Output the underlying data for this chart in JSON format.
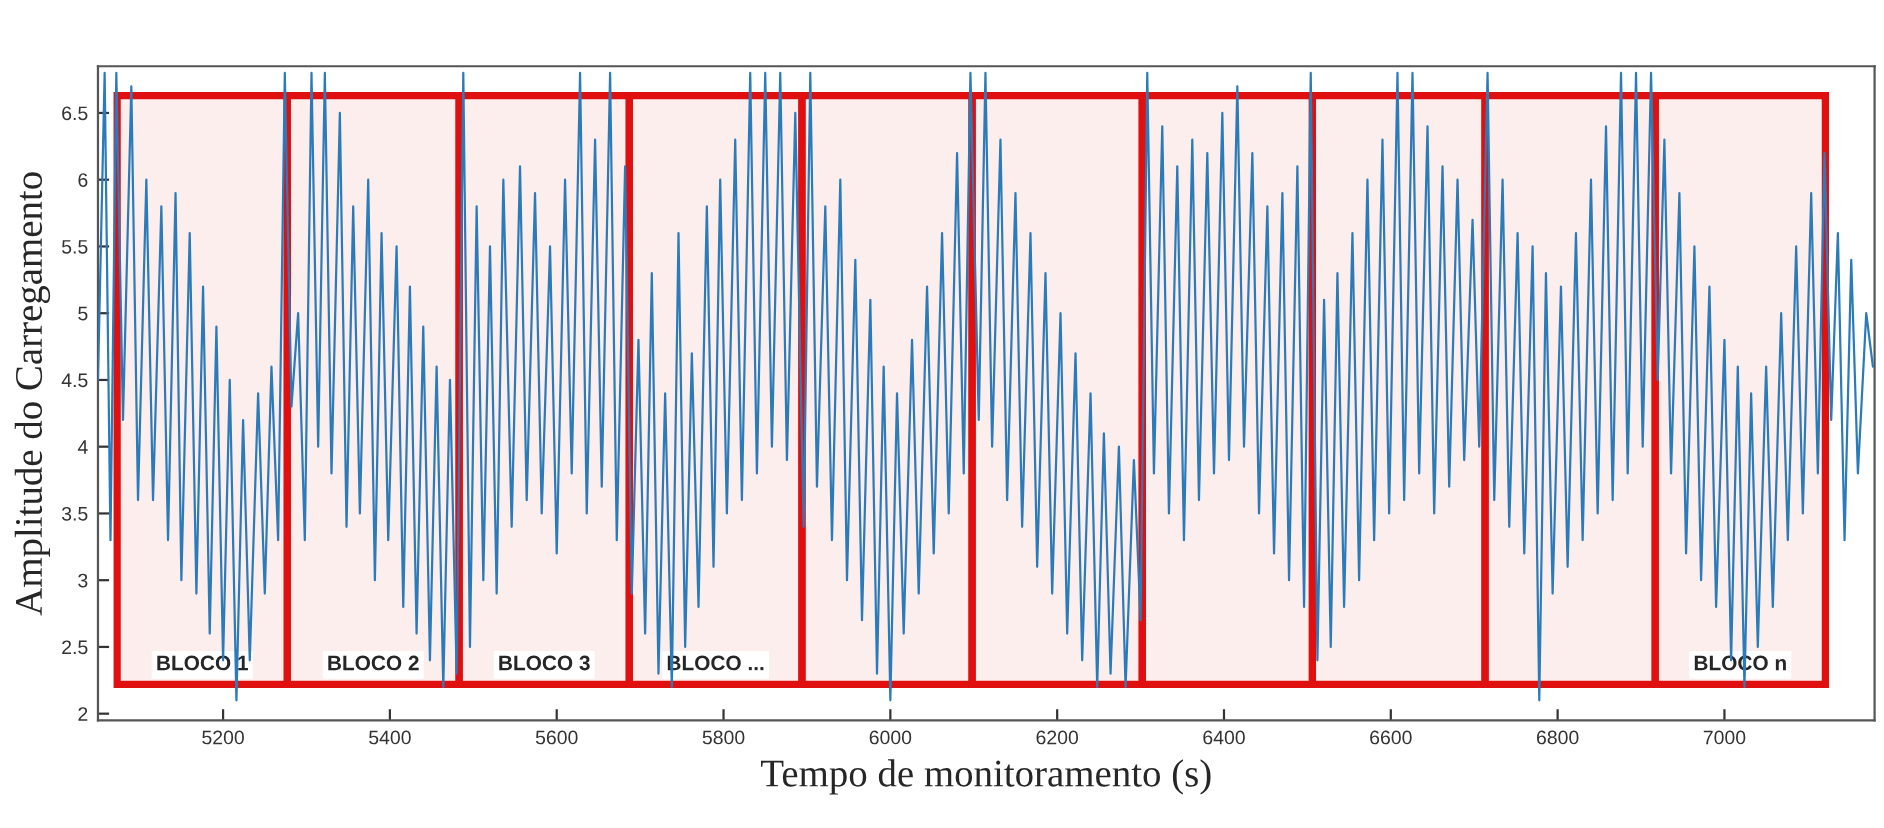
{
  "chart_data": {
    "type": "line",
    "xlabel": "Tempo de monitoramento (s)",
    "ylabel": "Amplitude do Carregamento",
    "x": [
      5050,
      5058,
      5065,
      5072,
      5080,
      5090,
      5098,
      5108,
      5116,
      5126,
      5134,
      5143,
      5150,
      5160,
      5168,
      5176,
      5184,
      5192,
      5200,
      5208,
      5216,
      5224,
      5232,
      5242,
      5250,
      5258,
      5266,
      5274,
      5282,
      5290,
      5298,
      5306,
      5314,
      5322,
      5330,
      5340,
      5348,
      5356,
      5364,
      5374,
      5382,
      5390,
      5398,
      5408,
      5416,
      5424,
      5432,
      5440,
      5448,
      5456,
      5464,
      5472,
      5480,
      5488,
      5496,
      5504,
      5512,
      5520,
      5528,
      5536,
      5546,
      5556,
      5564,
      5574,
      5582,
      5592,
      5600,
      5610,
      5618,
      5628,
      5636,
      5646,
      5654,
      5664,
      5672,
      5682,
      5690,
      5698,
      5706,
      5714,
      5722,
      5730,
      5738,
      5746,
      5754,
      5762,
      5770,
      5780,
      5788,
      5796,
      5804,
      5814,
      5822,
      5832,
      5840,
      5850,
      5858,
      5868,
      5876,
      5886,
      5896,
      5904,
      5912,
      5922,
      5930,
      5940,
      5948,
      5958,
      5966,
      5976,
      5984,
      5992,
      6000,
      6008,
      6016,
      6026,
      6034,
      6044,
      6052,
      6062,
      6070,
      6080,
      6088,
      6096,
      6106,
      6114,
      6122,
      6132,
      6140,
      6150,
      6158,
      6168,
      6176,
      6186,
      6194,
      6204,
      6212,
      6222,
      6230,
      6240,
      6248,
      6256,
      6264,
      6274,
      6282,
      6292,
      6300,
      6308,
      6316,
      6326,
      6334,
      6344,
      6352,
      6362,
      6370,
      6380,
      6388,
      6398,
      6406,
      6416,
      6424,
      6434,
      6442,
      6452,
      6460,
      6470,
      6478,
      6488,
      6496,
      6504,
      6512,
      6520,
      6528,
      6536,
      6544,
      6554,
      6562,
      6572,
      6580,
      6590,
      6598,
      6608,
      6616,
      6626,
      6634,
      6644,
      6652,
      6662,
      6670,
      6680,
      6688,
      6698,
      6706,
      6716,
      6724,
      6734,
      6742,
      6752,
      6760,
      6770,
      6778,
      6786,
      6794,
      6804,
      6812,
      6822,
      6830,
      6840,
      6848,
      6858,
      6866,
      6876,
      6884,
      6894,
      6902,
      6912,
      6920,
      6928,
      6936,
      6946,
      6954,
      6964,
      6972,
      6982,
      6990,
      7000,
      7008,
      7016,
      7024,
      7032,
      7040,
      7050,
      7058,
      7068,
      7076,
      7086,
      7094,
      7104,
      7112,
      7120,
      7128,
      7136,
      7144,
      7152,
      7160,
      7170,
      7178
    ],
    "series": [
      {
        "color": "#2b7bba",
        "values": [
          4.5,
          6.8,
          3.3,
          6.8,
          4.2,
          6.7,
          3.6,
          6.0,
          3.6,
          5.8,
          3.3,
          5.9,
          3.0,
          5.6,
          2.9,
          5.2,
          2.6,
          4.9,
          2.4,
          4.5,
          2.1,
          4.2,
          2.4,
          4.4,
          2.9,
          4.6,
          3.3,
          6.8,
          4.3,
          5.0,
          3.3,
          6.8,
          4.0,
          6.8,
          3.8,
          6.5,
          3.4,
          5.8,
          3.5,
          6.0,
          3.0,
          5.6,
          3.3,
          5.5,
          2.8,
          5.2,
          2.6,
          4.9,
          2.4,
          4.6,
          2.2,
          4.5,
          2.3,
          6.8,
          2.5,
          5.8,
          3.0,
          5.5,
          2.9,
          6.0,
          3.4,
          6.1,
          3.6,
          5.9,
          3.5,
          5.5,
          3.2,
          6.0,
          3.8,
          6.8,
          3.5,
          6.3,
          3.7,
          6.8,
          3.3,
          6.1,
          2.9,
          4.8,
          2.6,
          5.3,
          2.3,
          4.4,
          2.2,
          5.6,
          2.5,
          4.7,
          2.8,
          5.8,
          3.1,
          6.0,
          3.5,
          6.3,
          3.6,
          6.8,
          3.8,
          6.8,
          4.0,
          6.8,
          3.9,
          6.5,
          3.4,
          6.8,
          3.7,
          5.8,
          3.3,
          6.0,
          3.0,
          5.4,
          2.7,
          5.1,
          2.3,
          4.6,
          2.1,
          4.4,
          2.6,
          4.8,
          2.9,
          5.2,
          3.2,
          5.6,
          3.5,
          6.2,
          3.8,
          6.8,
          4.2,
          6.8,
          4.0,
          6.3,
          3.6,
          5.9,
          3.4,
          5.6,
          3.1,
          5.3,
          2.9,
          5.0,
          2.6,
          4.7,
          2.4,
          4.4,
          2.2,
          4.1,
          2.3,
          4.0,
          2.2,
          3.9,
          2.7,
          6.8,
          3.8,
          6.4,
          3.5,
          6.1,
          3.3,
          6.3,
          3.6,
          6.2,
          3.8,
          6.5,
          3.9,
          6.7,
          4.0,
          6.2,
          3.5,
          5.8,
          3.2,
          5.9,
          3.0,
          6.1,
          2.8,
          6.8,
          2.4,
          5.1,
          2.5,
          5.3,
          2.8,
          5.6,
          3.0,
          6.0,
          3.3,
          6.3,
          3.5,
          6.8,
          3.6,
          6.8,
          3.8,
          6.4,
          3.5,
          6.1,
          3.7,
          6.0,
          3.9,
          5.7,
          4.0,
          6.8,
          3.6,
          6.0,
          3.4,
          5.6,
          3.2,
          5.5,
          2.1,
          5.3,
          2.9,
          5.2,
          3.1,
          5.6,
          3.3,
          6.0,
          3.5,
          6.4,
          3.6,
          6.8,
          3.8,
          6.8,
          4.0,
          6.8,
          4.5,
          6.3,
          3.8,
          5.9,
          3.2,
          5.5,
          3.0,
          5.2,
          2.8,
          4.8,
          2.4,
          4.6,
          2.2,
          4.4,
          2.5,
          4.6,
          2.8,
          5.0,
          3.3,
          5.5,
          3.5,
          5.9,
          3.8,
          6.2,
          4.2,
          5.6,
          3.3,
          5.4,
          3.8,
          5.0,
          4.6
        ]
      }
    ],
    "xlim": [
      5050,
      7180
    ],
    "ylim": [
      1.95,
      6.85
    ],
    "xticks": [
      5200,
      5400,
      5600,
      5800,
      6000,
      6200,
      6400,
      6600,
      6800,
      7000
    ],
    "yticks": [
      2,
      2.5,
      3,
      3.5,
      4,
      4.5,
      5,
      5.5,
      6,
      6.5
    ],
    "grid": false,
    "legend": false,
    "marker": "none",
    "line_style": "solid",
    "bands": [
      {
        "axis": "x",
        "from": 5073,
        "to": 5277,
        "label": "BLOCO 1",
        "color": "#e01010"
      },
      {
        "axis": "x",
        "from": 5277,
        "to": 5483,
        "label": "BLOCO 2",
        "color": "#e01010"
      },
      {
        "axis": "x",
        "from": 5483,
        "to": 5687,
        "label": "BLOCO 3",
        "color": "#e01010"
      },
      {
        "axis": "x",
        "from": 5687,
        "to": 5894,
        "label": "BLOCO ...",
        "color": "#e01010"
      },
      {
        "axis": "x",
        "from": 5894,
        "to": 6098,
        "color": "#e01010"
      },
      {
        "axis": "x",
        "from": 6098,
        "to": 6302,
        "color": "#e01010"
      },
      {
        "axis": "x",
        "from": 6302,
        "to": 6506,
        "color": "#e01010"
      },
      {
        "axis": "x",
        "from": 6506,
        "to": 6713,
        "color": "#e01010"
      },
      {
        "axis": "x",
        "from": 6713,
        "to": 6917,
        "color": "#e01010"
      },
      {
        "axis": "x",
        "from": 6917,
        "to": 7121,
        "label": "BLOCO n",
        "color": "#e01010"
      }
    ]
  }
}
